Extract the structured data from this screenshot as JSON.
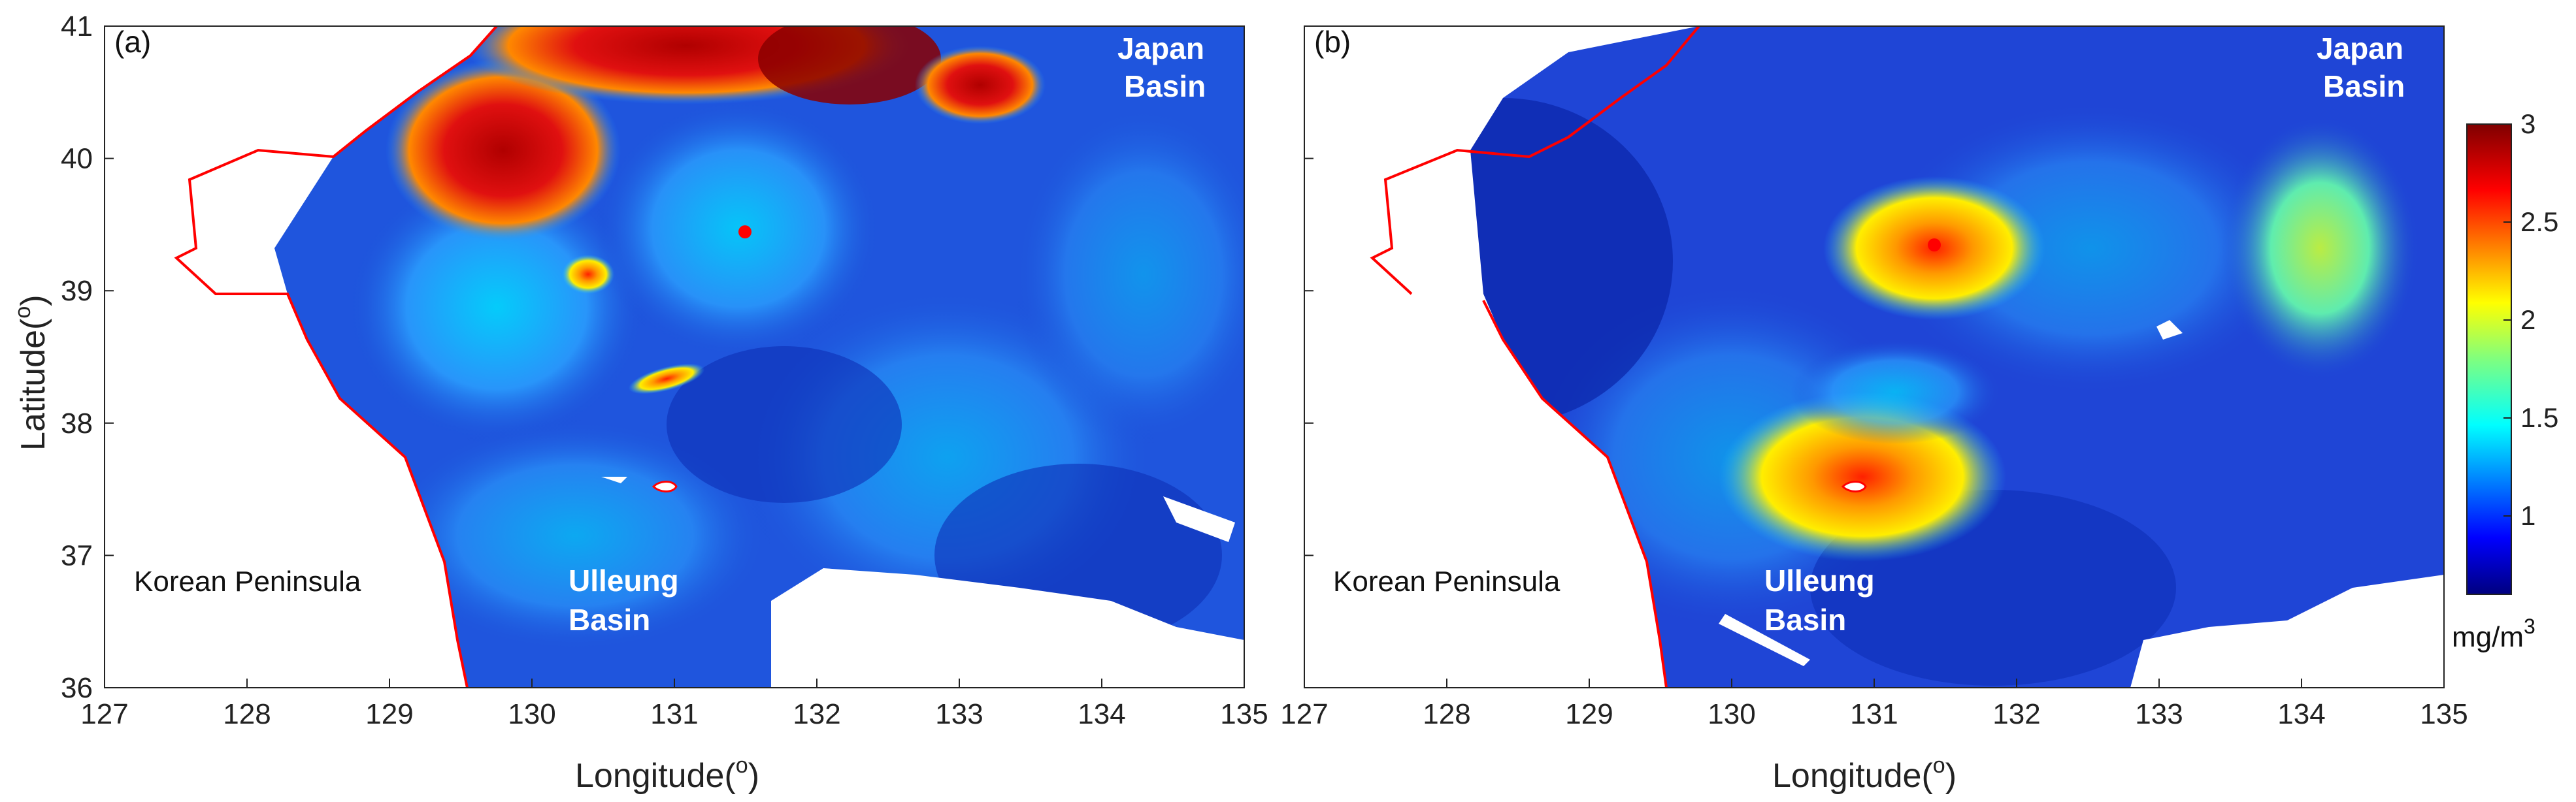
{
  "figure": {
    "xlabel": "Longitude(",
    "ylabel": "Latitude(",
    "degree": "o",
    "xticks": [
      "127",
      "128",
      "129",
      "130",
      "131",
      "132",
      "133",
      "134",
      "135"
    ],
    "yticks": [
      "36",
      "37",
      "38",
      "39",
      "40",
      "41"
    ]
  },
  "panels": [
    {
      "label": "(a)",
      "places": {
        "japan1": "Japan",
        "japan2": "Basin",
        "korea": "Korean Peninsula",
        "ulleung1": "Ulleung",
        "ulleung2": "Basin"
      }
    },
    {
      "label": "(b)",
      "places": {
        "japan1": "Japan",
        "japan2": "Basin",
        "korea": "Korean Peninsula",
        "ulleung1": "Ulleung",
        "ulleung2": "Basin"
      }
    }
  ],
  "colorbar": {
    "ticks": [
      "3",
      "2.5",
      "2",
      "1.5",
      "1"
    ],
    "unit": "mg/m",
    "unit_sup": "3",
    "range": [
      0.6,
      3.0
    ],
    "colors": [
      "#00007f",
      "#0000ff",
      "#007fff",
      "#00ffff",
      "#7fff7f",
      "#ffff00",
      "#ff7f00",
      "#ff0000",
      "#7f0000"
    ]
  },
  "map_colors": {
    "ocean_base": "#1a4dd6",
    "coast_line": "#ff0000",
    "land": "#ffffff"
  },
  "chart_data": {
    "type": "heatmap",
    "description_axes": {
      "x_range": [
        127,
        135
      ],
      "y_range": [
        36,
        41
      ]
    },
    "colorbar_range": [
      0.6,
      3.0
    ]
  }
}
